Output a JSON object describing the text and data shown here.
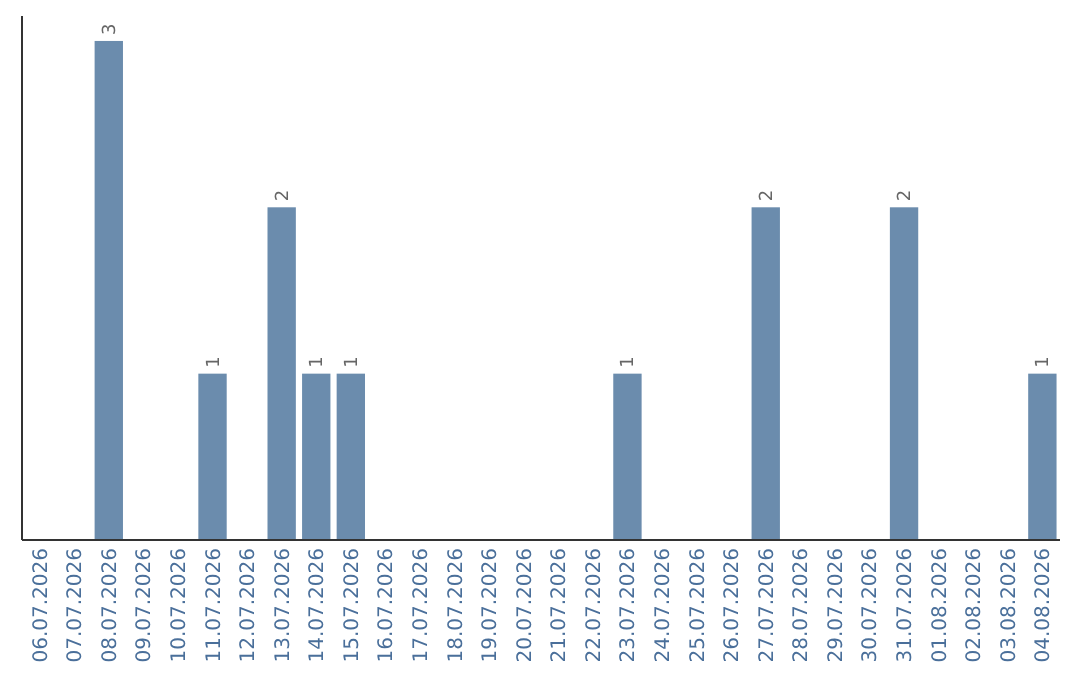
{
  "chart_data": {
    "type": "bar",
    "categories": [
      "06.07.2026",
      "07.07.2026",
      "08.07.2026",
      "09.07.2026",
      "10.07.2026",
      "11.07.2026",
      "12.07.2026",
      "13.07.2026",
      "14.07.2026",
      "15.07.2026",
      "16.07.2026",
      "17.07.2026",
      "18.07.2026",
      "19.07.2026",
      "20.07.2026",
      "21.07.2026",
      "22.07.2026",
      "23.07.2026",
      "24.07.2026",
      "25.07.2026",
      "26.07.2026",
      "27.07.2026",
      "28.07.2026",
      "29.07.2026",
      "30.07.2026",
      "31.07.2026",
      "01.08.2026",
      "02.08.2026",
      "03.08.2026",
      "04.08.2026"
    ],
    "values": [
      0,
      0,
      3,
      0,
      0,
      1,
      0,
      2,
      1,
      1,
      0,
      0,
      0,
      0,
      0,
      0,
      0,
      1,
      0,
      0,
      0,
      2,
      0,
      0,
      0,
      2,
      0,
      0,
      0,
      1
    ],
    "value_labels": [
      null,
      null,
      "3",
      null,
      null,
      "1",
      null,
      "2",
      "1",
      "1",
      null,
      null,
      null,
      null,
      null,
      null,
      null,
      "1",
      null,
      null,
      null,
      "2",
      null,
      null,
      null,
      "2",
      null,
      null,
      null,
      "1"
    ],
    "color": "#6b8cad"
  }
}
